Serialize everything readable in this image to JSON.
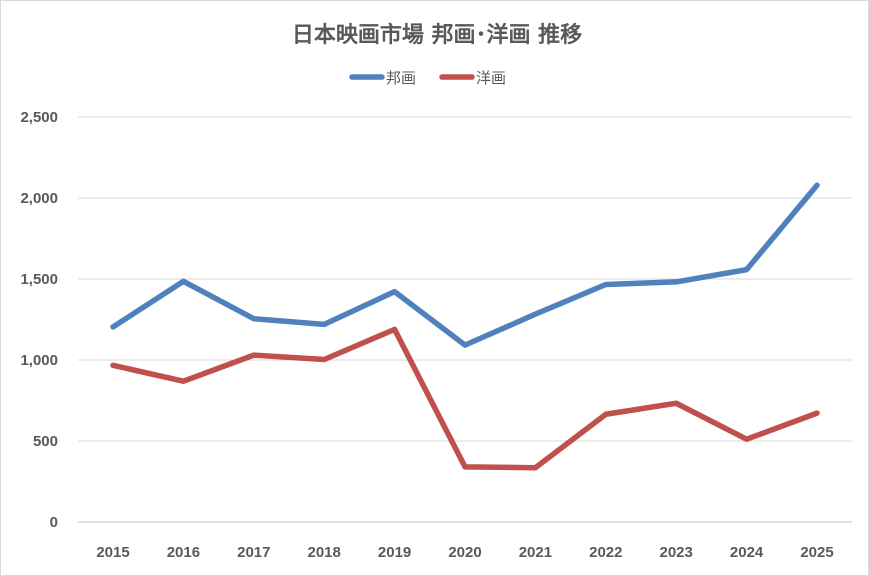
{
  "chart_data": {
    "type": "line",
    "title": "日本映画市場 邦画･洋画 推移",
    "xlabel": "",
    "ylabel": "",
    "categories": [
      "2015",
      "2016",
      "2017",
      "2018",
      "2019",
      "2020",
      "2021",
      "2022",
      "2023",
      "2024",
      "2025"
    ],
    "series": [
      {
        "name": "邦画",
        "color": "#4f81bd",
        "values": [
          1204,
          1486,
          1255,
          1220,
          1422,
          1092,
          1283,
          1466,
          1482,
          1558,
          2079
        ]
      },
      {
        "name": "洋画",
        "color": "#c0504d",
        "values": [
          967,
          869,
          1030,
          1003,
          1189,
          340,
          335,
          665,
          733,
          511,
          672
        ]
      }
    ],
    "ylim": [
      0,
      2500
    ],
    "yticks": [
      "0",
      "500",
      "1,000",
      "1,500",
      "2,000",
      "2,500"
    ],
    "grid": true,
    "legend": "top"
  }
}
